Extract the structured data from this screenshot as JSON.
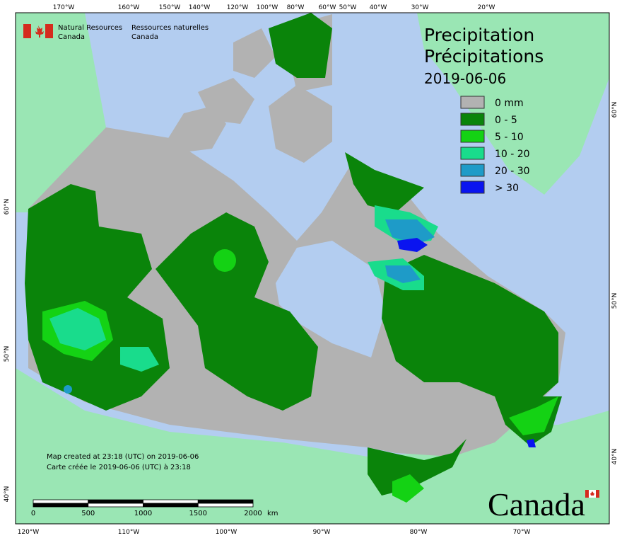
{
  "agency": {
    "en_line1": "Natural Resources",
    "en_line2": "Canada",
    "fr_line1": "Ressources naturelles",
    "fr_line2": "Canada"
  },
  "title": {
    "en": "Precipitation",
    "fr": "Précipitations",
    "date": "2019-06-06"
  },
  "legend": [
    {
      "label": "0 mm",
      "color": "#b2b2b2"
    },
    {
      "label": "0 - 5",
      "color": "#0a840a"
    },
    {
      "label": "5 - 10",
      "color": "#14d214"
    },
    {
      "label": "10 - 20",
      "color": "#19dc8c"
    },
    {
      "label": "20 - 30",
      "color": "#1e9bc8"
    },
    {
      "label": "> 30",
      "color": "#0a14f0"
    }
  ],
  "graticule": {
    "top": [
      "170°W",
      "160°W",
      "150°W",
      "140°W",
      "120°W",
      "100°W",
      "80°W",
      "60°W",
      "50°W",
      "40°W",
      "30°W",
      "20°W"
    ],
    "bottom": [
      "120°W",
      "110°W",
      "100°W",
      "90°W",
      "80°W",
      "70°W"
    ],
    "left": [
      "60°N",
      "50°N",
      "40°N"
    ],
    "right": [
      "60°N",
      "50°N",
      "40°N"
    ]
  },
  "credits": {
    "en": "Map created at 23:18 (UTC) on 2019-06-06",
    "fr": "Carte créée le 2019-06-06 (UTC) à 23:18"
  },
  "scale_bar": {
    "ticks": [
      0,
      500,
      1000,
      1500,
      2000
    ],
    "unit": "km"
  },
  "wordmark": "Canada"
}
